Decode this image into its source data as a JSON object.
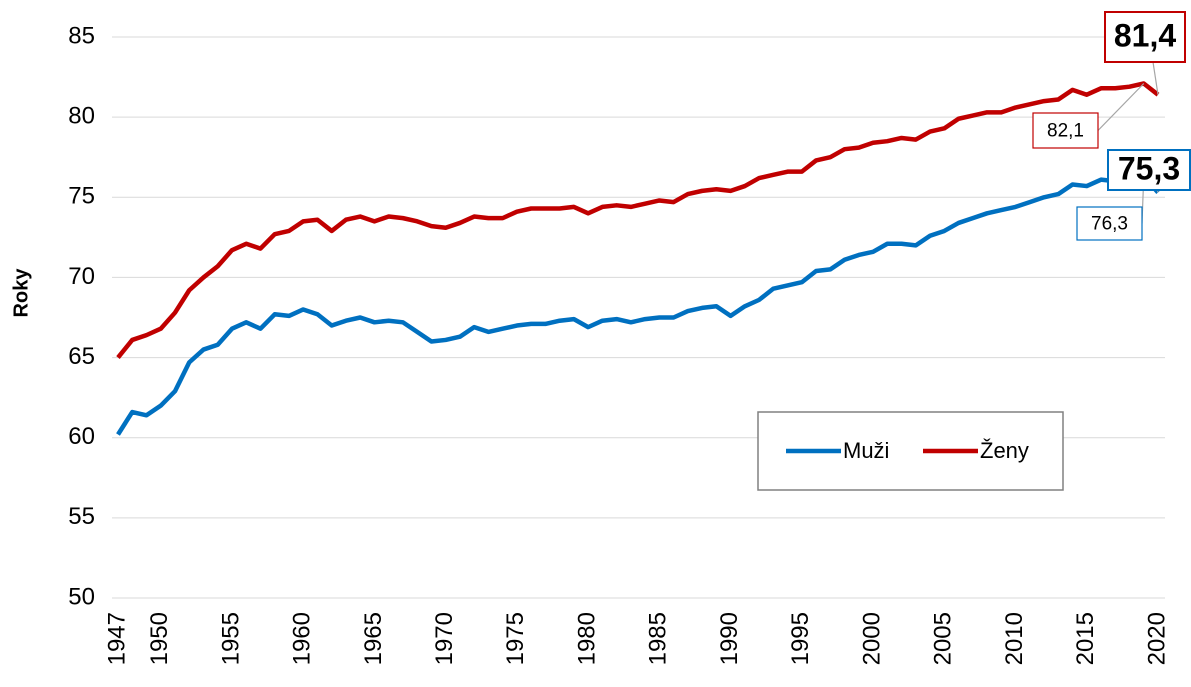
{
  "chart_data": {
    "type": "line",
    "y_label": "Roky",
    "x": [
      1947,
      1948,
      1949,
      1950,
      1951,
      1952,
      1953,
      1954,
      1955,
      1956,
      1957,
      1958,
      1959,
      1960,
      1961,
      1962,
      1963,
      1964,
      1965,
      1966,
      1967,
      1968,
      1969,
      1970,
      1971,
      1972,
      1973,
      1974,
      1975,
      1976,
      1977,
      1978,
      1979,
      1980,
      1981,
      1982,
      1983,
      1984,
      1985,
      1986,
      1987,
      1988,
      1989,
      1990,
      1991,
      1992,
      1993,
      1994,
      1995,
      1996,
      1997,
      1998,
      1999,
      2000,
      2001,
      2002,
      2003,
      2004,
      2005,
      2006,
      2007,
      2008,
      2009,
      2010,
      2011,
      2012,
      2013,
      2014,
      2015,
      2016,
      2017,
      2018,
      2019,
      2020
    ],
    "series": [
      {
        "name": "Muži",
        "color": "#0070c0",
        "values": [
          60.2,
          61.6,
          61.4,
          62.0,
          62.9,
          64.7,
          65.5,
          65.8,
          66.8,
          67.2,
          66.8,
          67.7,
          67.6,
          68.0,
          67.7,
          67.0,
          67.3,
          67.5,
          67.2,
          67.3,
          67.2,
          66.6,
          66.0,
          66.1,
          66.3,
          66.9,
          66.6,
          66.8,
          67.0,
          67.1,
          67.1,
          67.3,
          67.4,
          66.9,
          67.3,
          67.4,
          67.2,
          67.4,
          67.5,
          67.5,
          67.9,
          68.1,
          68.2,
          67.6,
          68.2,
          68.6,
          69.3,
          69.5,
          69.7,
          70.4,
          70.5,
          71.1,
          71.4,
          71.6,
          72.1,
          72.1,
          72.0,
          72.6,
          72.9,
          73.4,
          73.7,
          74.0,
          74.2,
          74.4,
          74.7,
          75.0,
          75.2,
          75.8,
          75.7,
          76.1,
          76.0,
          76.2,
          76.3,
          75.3
        ],
        "value_labels": [
          null,
          null,
          null,
          null,
          null,
          null,
          null,
          null,
          null,
          null,
          null,
          null,
          null,
          null,
          null,
          null,
          null,
          null,
          null,
          null,
          null,
          null,
          null,
          null,
          null,
          null,
          null,
          null,
          null,
          null,
          null,
          null,
          null,
          null,
          null,
          null,
          null,
          null,
          null,
          null,
          null,
          null,
          null,
          null,
          null,
          null,
          null,
          null,
          null,
          null,
          null,
          null,
          null,
          null,
          null,
          null,
          null,
          null,
          null,
          null,
          null,
          null,
          null,
          null,
          null,
          null,
          null,
          null,
          null,
          null,
          null,
          null,
          "76,3",
          "75,3"
        ]
      },
      {
        "name": "Ženy",
        "color": "#c00000",
        "values": [
          65.0,
          66.1,
          66.4,
          66.8,
          67.8,
          69.2,
          70.0,
          70.7,
          71.7,
          72.1,
          71.8,
          72.7,
          72.9,
          73.5,
          73.6,
          72.9,
          73.6,
          73.8,
          73.5,
          73.8,
          73.7,
          73.5,
          73.2,
          73.1,
          73.4,
          73.8,
          73.7,
          73.7,
          74.1,
          74.3,
          74.3,
          74.3,
          74.4,
          74.0,
          74.4,
          74.5,
          74.4,
          74.6,
          74.8,
          74.7,
          75.2,
          75.4,
          75.5,
          75.4,
          75.7,
          76.2,
          76.4,
          76.6,
          76.6,
          77.3,
          77.5,
          78.0,
          78.1,
          78.4,
          78.5,
          78.7,
          78.6,
          79.1,
          79.3,
          79.9,
          80.1,
          80.3,
          80.3,
          80.6,
          80.8,
          81.0,
          81.1,
          81.7,
          81.4,
          81.8,
          81.8,
          81.9,
          82.1,
          81.4
        ],
        "value_labels": [
          null,
          null,
          null,
          null,
          null,
          null,
          null,
          null,
          null,
          null,
          null,
          null,
          null,
          null,
          null,
          null,
          null,
          null,
          null,
          null,
          null,
          null,
          null,
          null,
          null,
          null,
          null,
          null,
          null,
          null,
          null,
          null,
          null,
          null,
          null,
          null,
          null,
          null,
          null,
          null,
          null,
          null,
          null,
          null,
          null,
          null,
          null,
          null,
          null,
          null,
          null,
          null,
          null,
          null,
          null,
          null,
          null,
          null,
          null,
          null,
          null,
          null,
          null,
          null,
          null,
          null,
          null,
          null,
          null,
          null,
          null,
          null,
          "82,1",
          "81,4"
        ]
      }
    ],
    "xlim": [
      1947,
      2020
    ],
    "xticks": [
      1947,
      1950,
      1955,
      1960,
      1965,
      1970,
      1975,
      1980,
      1985,
      1990,
      1995,
      2000,
      2005,
      2010,
      2015,
      2020
    ],
    "ylim": [
      50,
      85
    ],
    "yticks": [
      50,
      55,
      60,
      65,
      70,
      75,
      80,
      85
    ],
    "grid": true,
    "legend": "lower right"
  }
}
